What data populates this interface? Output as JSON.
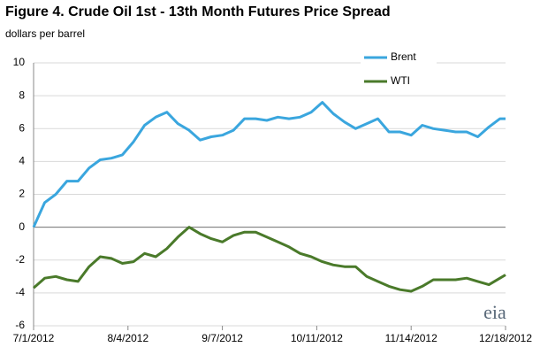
{
  "chart_data": {
    "type": "line",
    "title": "Figure 4.  Crude Oil 1st - 13th Month Futures Price Spread",
    "y_axis_label": "dollars per barrel",
    "logo": "eia",
    "x": [
      "7/1/2012",
      "7/5/2012",
      "7/9/2012",
      "7/13/2012",
      "7/17/2012",
      "7/21/2012",
      "7/25/2012",
      "7/29/2012",
      "8/2/2012",
      "8/6/2012",
      "8/10/2012",
      "8/14/2012",
      "8/18/2012",
      "8/22/2012",
      "8/26/2012",
      "8/30/2012",
      "9/3/2012",
      "9/7/2012",
      "9/11/2012",
      "9/15/2012",
      "9/19/2012",
      "9/23/2012",
      "9/27/2012",
      "10/1/2012",
      "10/5/2012",
      "10/9/2012",
      "10/13/2012",
      "10/17/2012",
      "10/21/2012",
      "10/25/2012",
      "10/29/2012",
      "11/2/2012",
      "11/6/2012",
      "11/10/2012",
      "11/14/2012",
      "11/18/2012",
      "11/22/2012",
      "11/26/2012",
      "11/30/2012",
      "12/4/2012",
      "12/8/2012",
      "12/12/2012",
      "12/16/2012",
      "12/18/2012"
    ],
    "series": [
      {
        "name": "Brent",
        "color": "#3aa6de",
        "values": [
          0,
          1.5,
          2.0,
          2.8,
          2.8,
          3.6,
          4.1,
          4.2,
          4.4,
          5.2,
          6.2,
          6.7,
          7.0,
          6.3,
          5.9,
          5.3,
          5.5,
          5.6,
          5.9,
          6.6,
          6.6,
          6.5,
          6.7,
          6.6,
          6.7,
          7.0,
          7.6,
          6.9,
          6.4,
          6.0,
          6.3,
          6.6,
          5.8,
          5.8,
          5.6,
          6.2,
          6.0,
          5.9,
          5.8,
          5.8,
          5.5,
          6.1,
          6.6,
          6.6
        ]
      },
      {
        "name": "WTI",
        "color": "#4a7a2a",
        "values": [
          -3.7,
          -3.1,
          -3.0,
          -3.2,
          -3.3,
          -2.4,
          -1.8,
          -1.9,
          -2.2,
          -2.1,
          -1.6,
          -1.8,
          -1.3,
          -0.6,
          0.0,
          -0.4,
          -0.7,
          -0.9,
          -0.5,
          -0.3,
          -0.3,
          -0.6,
          -0.9,
          -1.2,
          -1.6,
          -1.8,
          -2.1,
          -2.3,
          -2.4,
          -2.4,
          -3.0,
          -3.3,
          -3.6,
          -3.8,
          -3.9,
          -3.6,
          -3.2,
          -3.2,
          -3.2,
          -3.1,
          -3.3,
          -3.5,
          -3.1,
          -2.9
        ]
      }
    ],
    "xlim": [
      "7/1/2012",
      "12/18/2012"
    ],
    "xticks": [
      "7/1/2012",
      "8/4/2012",
      "9/7/2012",
      "10/11/2012",
      "11/14/2012",
      "12/18/2012"
    ],
    "ylim": [
      -6,
      10
    ],
    "yticks": [
      -6,
      -4,
      -2,
      0,
      2,
      4,
      6,
      8,
      10
    ],
    "grid": true,
    "legend": "upper right"
  }
}
